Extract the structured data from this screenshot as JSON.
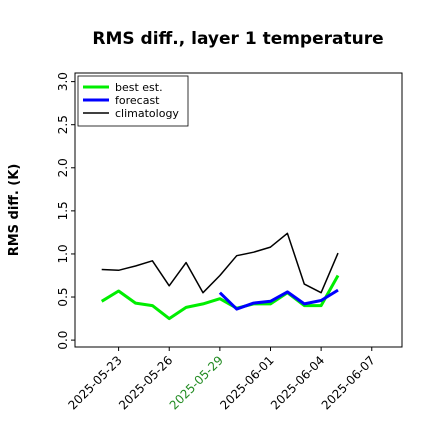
{
  "chart_data": {
    "type": "line",
    "title": "RMS diff., layer 1 temperature",
    "y_label": "RMS diff. (K)",
    "x": [
      "2025-05-22",
      "2025-05-23",
      "2025-05-24",
      "2025-05-25",
      "2025-05-26",
      "2025-05-27",
      "2025-05-28",
      "2025-05-29",
      "2025-05-30",
      "2025-05-31",
      "2025-06-01",
      "2025-06-02",
      "2025-06-03",
      "2025-06-04",
      "2025-06-05"
    ],
    "series": [
      {
        "name": "best est.",
        "color": "#00ee00",
        "width": 3,
        "values": [
          0.45,
          0.57,
          0.43,
          0.4,
          0.25,
          0.38,
          0.42,
          0.48,
          0.37,
          0.42,
          0.42,
          0.55,
          0.4,
          0.4,
          0.75
        ]
      },
      {
        "name": "forecast",
        "color": "#0000ff",
        "width": 3,
        "values": [
          null,
          null,
          null,
          null,
          null,
          null,
          null,
          0.55,
          0.36,
          0.43,
          0.45,
          0.56,
          0.42,
          0.46,
          0.58
        ]
      },
      {
        "name": "climatology",
        "color": "#000000",
        "width": 1.5,
        "values": [
          0.82,
          0.81,
          0.86,
          0.92,
          0.63,
          0.9,
          0.55,
          0.75,
          0.98,
          1.02,
          1.08,
          1.24,
          0.65,
          0.55,
          1.01
        ]
      }
    ],
    "xlim": [
      "2025-05-20T10:00",
      "2025-06-08T19:00"
    ],
    "xticks": [
      "2025-05-23",
      "2025-05-26",
      "2025-05-29",
      "2025-06-01",
      "2025-06-04",
      "2025-06-07"
    ],
    "xtick_colors": [
      "#000000",
      "#000000",
      "#228b22",
      "#000000",
      "#000000",
      "#000000"
    ],
    "ylim": [
      -0.08,
      3.1
    ],
    "yticks": [
      {
        "value": 0,
        "label": "0.0"
      },
      0.5,
      {
        "value": 1,
        "label": "1.0"
      },
      1.5,
      {
        "value": 2,
        "label": "2.0"
      },
      2.5,
      {
        "value": 3,
        "label": "3.0"
      }
    ],
    "legend": "upper left"
  }
}
